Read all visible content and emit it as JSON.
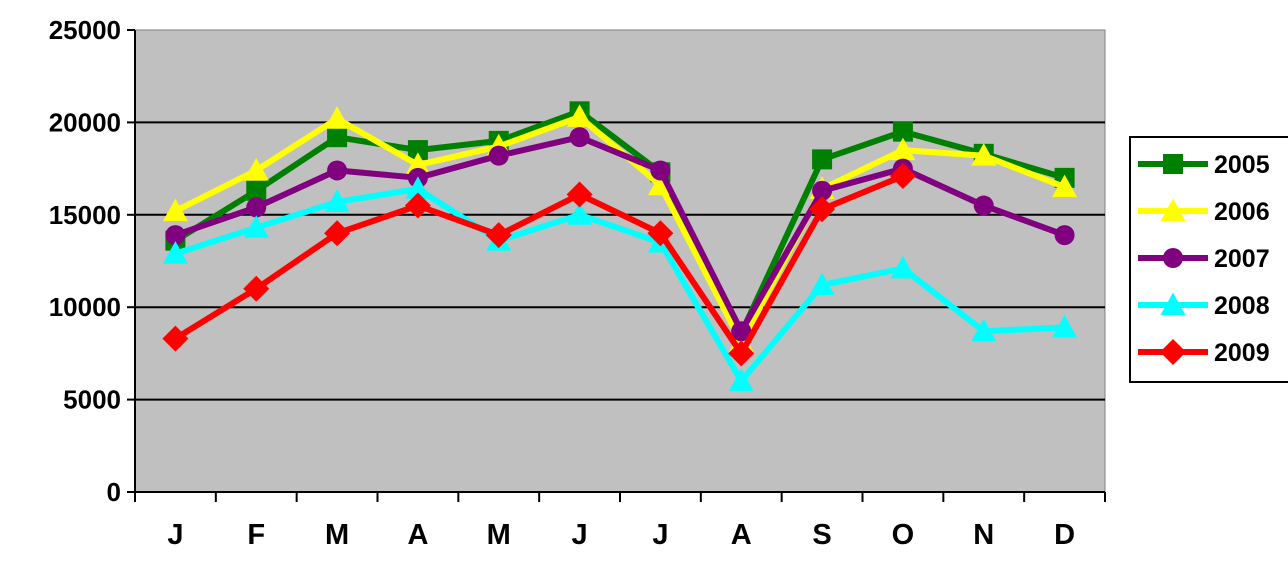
{
  "chart_data": {
    "type": "line",
    "title": "",
    "xlabel": "",
    "ylabel": "",
    "categories": [
      "J",
      "F",
      "M",
      "A",
      "M",
      "J",
      "J",
      "A",
      "S",
      "O",
      "N",
      "D"
    ],
    "ylim": [
      0,
      25000
    ],
    "yticks": [
      0,
      5000,
      10000,
      15000,
      20000,
      25000
    ],
    "ytick_labels": [
      "0",
      "5000",
      "10000",
      "15000",
      "20000",
      "25000"
    ],
    "grid": "horizontal",
    "plot_background": "#c0c0c0",
    "legend_position": "right",
    "series": [
      {
        "name": "2005",
        "color": "#008000",
        "marker": "square",
        "values": [
          13600,
          16300,
          19200,
          18500,
          19000,
          20600,
          17300,
          8600,
          18000,
          19500,
          18300,
          17000
        ]
      },
      {
        "name": "2006",
        "color": "#ffff00",
        "marker": "triangle",
        "values": [
          15200,
          17400,
          20200,
          17700,
          18700,
          20300,
          16600,
          8100,
          16400,
          18500,
          18200,
          16500
        ]
      },
      {
        "name": "2007",
        "color": "#800080",
        "marker": "circle",
        "values": [
          13900,
          15400,
          17400,
          17000,
          18200,
          19200,
          17400,
          8700,
          16300,
          17500,
          15500,
          13900
        ]
      },
      {
        "name": "2008",
        "color": "#00ffff",
        "marker": "triangle",
        "values": [
          12900,
          14300,
          15700,
          16400,
          13600,
          15000,
          13500,
          6000,
          11200,
          12100,
          8700,
          8900
        ]
      },
      {
        "name": "2009",
        "color": "#ff0000",
        "marker": "diamond",
        "values": [
          8300,
          11000,
          14000,
          15500,
          13900,
          16100,
          14000,
          7500,
          15300,
          17100,
          null,
          null
        ]
      }
    ]
  }
}
